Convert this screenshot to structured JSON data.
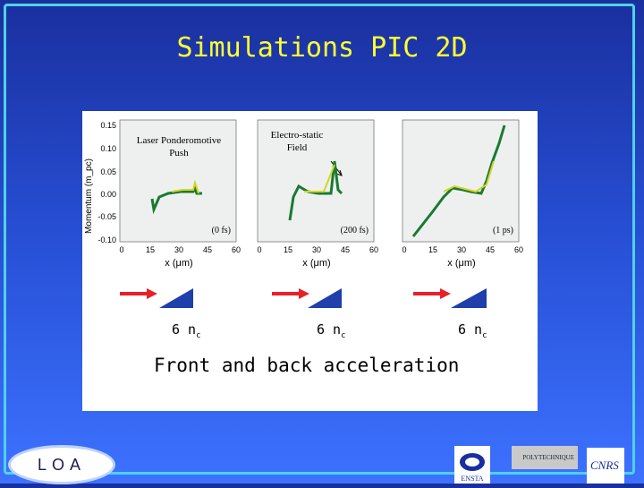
{
  "slide": {
    "title": "Simulations PIC 2D",
    "caption": "Front and back acceleration",
    "density_label": "6 n",
    "density_sub": "c"
  },
  "plots": {
    "ylabel": "Momentum (m_pc)",
    "yticks": [
      "0.15",
      "0.10",
      "0.05",
      "0.00",
      "-0.05",
      "-0.10"
    ],
    "xticks": [
      "0",
      "15",
      "30",
      "45",
      "60"
    ],
    "xlabel": "x (μm)",
    "panels": [
      {
        "annotation_line1": "Laser Ponderomotive",
        "annotation_line2": "Push",
        "time": "(0 fs)"
      },
      {
        "annotation_line1": "Electro-static",
        "annotation_line2": "Field",
        "time": "(200 fs)"
      },
      {
        "annotation_line1": "",
        "annotation_line2": "",
        "time": "(1 ps)"
      }
    ]
  },
  "logos": {
    "loa": "LOA",
    "ensta": "ENSTA",
    "polytechnique": "POLYTECHNIQUE",
    "cnrs": "CNRS"
  },
  "colors": {
    "title": "#ffff33",
    "frame": "#4fd2e6",
    "arrow": "#e8202a",
    "target": "#1f3faa"
  }
}
